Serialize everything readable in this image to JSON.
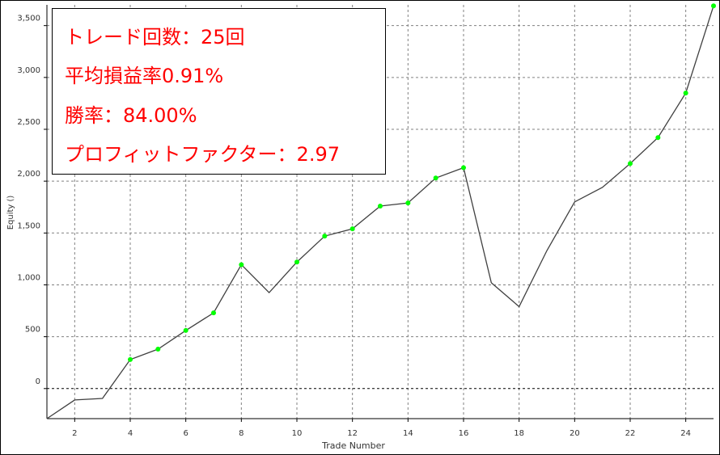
{
  "stats": {
    "trades": "トレード回数：25回",
    "avg_pl": "平均損益率0.91%",
    "win_rate": "勝率：84.00%",
    "profit_factor": "プロフィットファクター：2.97"
  },
  "colors": {
    "line": "#404040",
    "win_marker": "#00ff00",
    "stats_text": "#ff0000",
    "grid": "#808080"
  },
  "chart_data": {
    "type": "line",
    "xlabel": "Trade Number",
    "ylabel": "Equity ()",
    "xlim": [
      1,
      25
    ],
    "ylim": [
      -290,
      3700
    ],
    "x_ticks": [
      2,
      4,
      6,
      8,
      10,
      12,
      14,
      16,
      18,
      20,
      22,
      24
    ],
    "y_ticks": [
      0,
      500,
      1000,
      1500,
      2000,
      2500,
      3000,
      3500
    ],
    "y_tick_labels": [
      "0",
      "500",
      "1,000",
      "1,500",
      "2,000",
      "2,500",
      "3,000",
      "3,500"
    ],
    "grid": true,
    "zero_line": true,
    "series": [
      {
        "x": [
          1,
          2,
          3,
          4,
          5,
          6,
          7,
          8,
          9,
          10,
          11,
          12,
          13,
          14,
          15,
          16,
          17,
          18,
          19,
          20,
          21,
          22,
          23,
          24,
          25
        ],
        "values": [
          -290,
          -110,
          -95,
          280,
          380,
          560,
          730,
          1195,
          925,
          1220,
          1470,
          1540,
          1760,
          1790,
          2030,
          2130,
          1020,
          790,
          1330,
          1800,
          1940,
          2170,
          2420,
          2850,
          3690
        ],
        "markers": [
          false,
          false,
          false,
          true,
          true,
          true,
          true,
          true,
          false,
          true,
          true,
          true,
          true,
          true,
          true,
          true,
          false,
          false,
          false,
          false,
          false,
          true,
          true,
          true,
          true
        ]
      }
    ]
  }
}
